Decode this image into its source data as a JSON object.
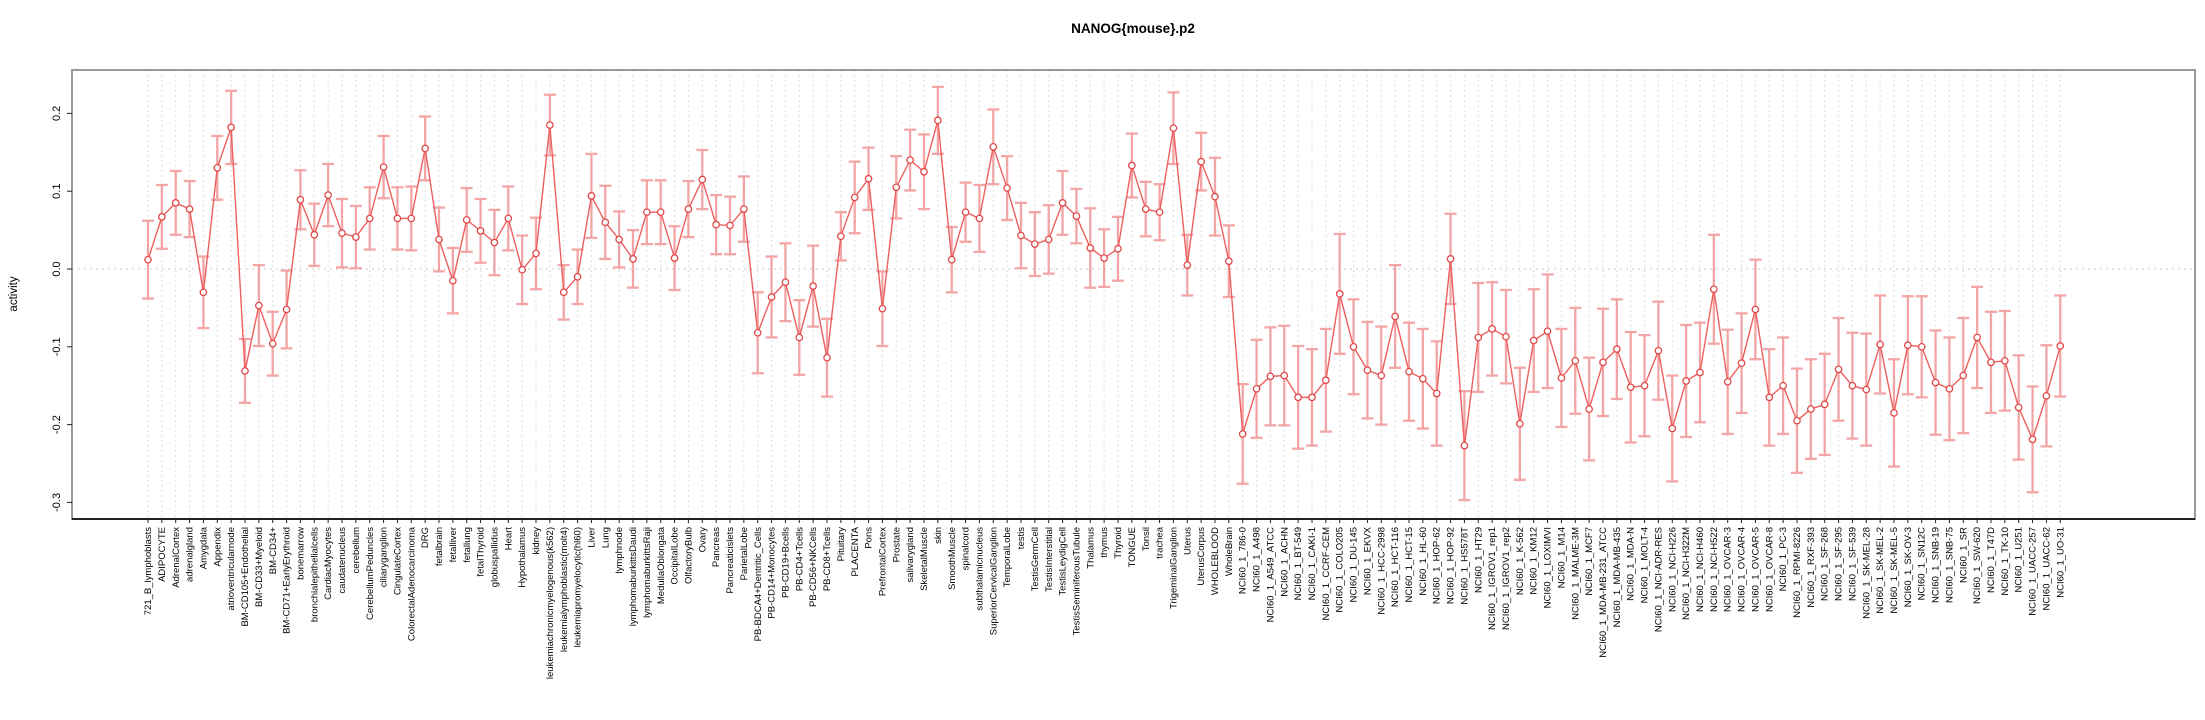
{
  "window": {
    "title": "NANOG{mouse}.p2"
  },
  "chart_data": {
    "type": "line",
    "title": "NANOG{mouse}.p2",
    "xlabel": "",
    "ylabel": "activity",
    "ylim": [
      -0.32,
      0.255
    ],
    "yticks": [
      0.2,
      0.1,
      0.0,
      -0.1,
      -0.2,
      -0.3
    ],
    "grid": "vertical dashed gridline at every category; dotted horizontal line at y=0",
    "legend_position": "none",
    "marker": "open-circle",
    "error_bars": true,
    "colors": {
      "series_line": "#ee5f5f",
      "marker_stroke": "#e04848",
      "error_bar": "#f29090",
      "gridline": "#e2e2e2",
      "zero_line": "#c9c9c9",
      "frame": "#999999",
      "axis": "#222222",
      "text": "#000000",
      "background": "#ffffff"
    },
    "categories": [
      "721_B_lymphoblasts",
      "ADIPOCYTE",
      "AdrenalCortex",
      "adrenalgland",
      "Amygdala",
      "Appendix",
      "atrioventricularnode",
      "BM-CD105+Endothelial",
      "BM-CD33+Myeloid",
      "BM-CD34+",
      "BM-CD71+EarlyErythroid",
      "bonemarrow",
      "bronchialepithelialcells",
      "CardiacMyocytes",
      "caudatenucleus",
      "cerebellum",
      "CerebellumPeduncles",
      "ciliaryganglion",
      "CingulateCortex",
      "ColorectalAdenocarcinoma",
      "DRG",
      "fetalbrain",
      "fetalliver",
      "fetallung",
      "fetalThyroid",
      "globuspallidus",
      "Heart",
      "Hypothalamus",
      "kidney",
      "leukemiachronicmyelogenous(k562)",
      "leukemialymphoblastic(molt4)",
      "leukemiapromyelocytic(hl60)",
      "Liver",
      "Lung",
      "lymphnode",
      "lymphomaburkittsDaudi",
      "lymphomaburkittsRaji",
      "MedullaOblongata",
      "OccipitalLobe",
      "OlfactoryBulb",
      "Ovary",
      "Pancreas",
      "Pancreaticislets",
      "ParietalLobe",
      "PB-BDCA4+Dentritic_Cells",
      "PB-CD14+Monocytes",
      "PB-CD19+Bcells",
      "PB-CD4+Tcells",
      "PB-CD56+NKCells",
      "PB-CD8+Tcells",
      "Pituitary",
      "PLACENTA",
      "Pons",
      "PrefrontalCortex",
      "Prostate",
      "salivarygland",
      "SkeletalMuscle",
      "skin",
      "SmoothMuscle",
      "spinalcord",
      "subthalamicnucleus",
      "SuperiorCervicalGanglion",
      "TemporalLobe",
      "testis",
      "TestisGermCell",
      "TestisInterstitial",
      "TestisLeydigCell",
      "TestisSeminiferousTubule",
      "Thalamus",
      "thymus",
      "Thyroid",
      "TONGUE",
      "Tonsil",
      "trachea",
      "TrigeminalGanglion",
      "Uterus",
      "UterusCorpus",
      "WHOLEBLOOD",
      "WholeBrain",
      "NCI60_1_786-0",
      "NCI60_1_A498",
      "NCI60_1_A549_ATCC",
      "NCI60_1_ACHN",
      "NCI60_1_BT-549",
      "NCI60_1_CAKI-1",
      "NCI60_1_CCRF-CEM",
      "NCI60_1_COLO205",
      "NCI60_1_DU-145",
      "NCI60_1_EKVX",
      "NCI60_1_HCC-2998",
      "NCI60_1_HCT-116",
      "NCI60_1_HCT-15",
      "NCI60_1_HL-60",
      "NCI60_1_HOP-62",
      "NCI60_1_HOP-92",
      "NCI60_1_HS578T",
      "NCI60_1_HT29",
      "NCI60_1_IGROV1_rep1",
      "NCI60_1_IGROV1_rep2",
      "NCI60_1_K-562",
      "NCI60_1_KM12",
      "NCI60_1_LOXIMVI",
      "NCI60_1_M14",
      "NCI60_1_MALME-3M",
      "NCI60_1_MCF7",
      "NCI60_1_MDA-MB-231_ATCC",
      "NCI60_1_MDA-MB-435",
      "NCI60_1_MDA-N",
      "NCI60_1_MOLT-4",
      "NCI60_1_NCI-ADR-RES",
      "NCI60_1_NCI-H226",
      "NCI60_1_NCI-H322M",
      "NCI60_1_NCI-H460",
      "NCI60_1_NCI-H522",
      "NCI60_1_OVCAR-3",
      "NCI60_1_OVCAR-4",
      "NCI60_1_OVCAR-5",
      "NCI60_1_OVCAR-8",
      "NCI60_1_PC-3",
      "NCI60_1_RPMI-8226",
      "NCI60_1_RXF-393",
      "NCI60_1_SF-268",
      "NCI60_1_SF-295",
      "NCI60_1_SF-539",
      "NCI60_1_SK-MEL-28",
      "NCI60_1_SK-MEL-2",
      "NCI60_1_SK-MEL-5",
      "NCI60_1_SK-OV-3",
      "NCI60_1_SN12C",
      "NCI60_1_SNB-19",
      "NCI60_1_SNB-75",
      "NCI60_1_SR",
      "NCI60_1_SW-620",
      "NCI60_1_T47D",
      "NCI60_1_TK-10",
      "NCI60_1_U251",
      "NCI60_1_UACC-257",
      "NCI60_1_UACC-62",
      "NCI60_1_UO-31"
    ],
    "values": [
      0.012,
      0.067,
      0.085,
      0.077,
      -0.03,
      0.13,
      0.182,
      -0.131,
      -0.047,
      -0.096,
      -0.052,
      0.089,
      0.044,
      0.095,
      0.046,
      0.041,
      0.065,
      0.131,
      0.065,
      0.065,
      0.155,
      0.038,
      -0.015,
      0.063,
      0.049,
      0.034,
      0.065,
      -0.001,
      0.02,
      0.185,
      -0.03,
      -0.01,
      0.094,
      0.06,
      0.038,
      0.013,
      0.073,
      0.073,
      0.014,
      0.077,
      0.115,
      0.057,
      0.056,
      0.077,
      -0.082,
      -0.036,
      -0.017,
      -0.088,
      -0.022,
      -0.114,
      0.042,
      0.092,
      0.116,
      -0.051,
      0.105,
      0.14,
      0.125,
      0.191,
      0.012,
      0.073,
      0.065,
      0.157,
      0.104,
      0.043,
      0.032,
      0.038,
      0.085,
      0.068,
      0.027,
      0.014,
      0.026,
      0.133,
      0.077,
      0.073,
      0.181,
      0.005,
      0.138,
      0.093,
      0.01,
      -0.212,
      -0.154,
      -0.138,
      -0.137,
      -0.165,
      -0.165,
      -0.143,
      -0.032,
      -0.1,
      -0.13,
      -0.137,
      -0.061,
      -0.132,
      -0.141,
      -0.16,
      0.013,
      -0.227,
      -0.088,
      -0.077,
      -0.087,
      -0.199,
      -0.092,
      -0.08,
      -0.14,
      -0.118,
      -0.18,
      -0.12,
      -0.103,
      -0.152,
      -0.15,
      -0.105,
      -0.205,
      -0.144,
      -0.133,
      -0.026,
      -0.145,
      -0.121,
      -0.052,
      -0.165,
      -0.15,
      -0.195,
      -0.18,
      -0.174,
      -0.129,
      -0.15,
      -0.155,
      -0.097,
      -0.185,
      -0.098,
      -0.1,
      -0.146,
      -0.154,
      -0.137,
      -0.088,
      -0.12,
      -0.118,
      -0.178,
      -0.219,
      -0.163,
      -0.099
    ],
    "errors": [
      0.05,
      0.041,
      0.041,
      0.036,
      0.046,
      0.041,
      0.047,
      0.041,
      0.052,
      0.041,
      0.05,
      0.038,
      0.04,
      0.04,
      0.044,
      0.04,
      0.04,
      0.04,
      0.04,
      0.041,
      0.041,
      0.041,
      0.042,
      0.041,
      0.041,
      0.042,
      0.041,
      0.044,
      0.046,
      0.039,
      0.035,
      0.035,
      0.054,
      0.047,
      0.036,
      0.037,
      0.041,
      0.041,
      0.041,
      0.036,
      0.038,
      0.038,
      0.037,
      0.042,
      0.052,
      0.052,
      0.05,
      0.048,
      0.052,
      0.05,
      0.031,
      0.046,
      0.04,
      0.048,
      0.04,
      0.039,
      0.048,
      0.043,
      0.042,
      0.038,
      0.043,
      0.048,
      0.041,
      0.042,
      0.041,
      0.044,
      0.041,
      0.035,
      0.051,
      0.037,
      0.041,
      0.041,
      0.035,
      0.036,
      0.046,
      0.039,
      0.037,
      0.05,
      0.046,
      0.064,
      0.063,
      0.063,
      0.064,
      0.066,
      0.062,
      0.066,
      0.077,
      0.061,
      0.062,
      0.063,
      0.066,
      0.063,
      0.064,
      0.067,
      0.058,
      0.07,
      0.07,
      0.06,
      0.06,
      0.072,
      0.066,
      0.073,
      0.063,
      0.068,
      0.066,
      0.069,
      0.064,
      0.071,
      0.065,
      0.063,
      0.068,
      0.072,
      0.064,
      0.07,
      0.067,
      0.064,
      0.064,
      0.062,
      0.062,
      0.067,
      0.064,
      0.065,
      0.066,
      0.068,
      0.072,
      0.063,
      0.069,
      0.063,
      0.065,
      0.067,
      0.066,
      0.074,
      0.065,
      0.065,
      0.064,
      0.067,
      0.068,
      0.065,
      0.065
    ]
  }
}
